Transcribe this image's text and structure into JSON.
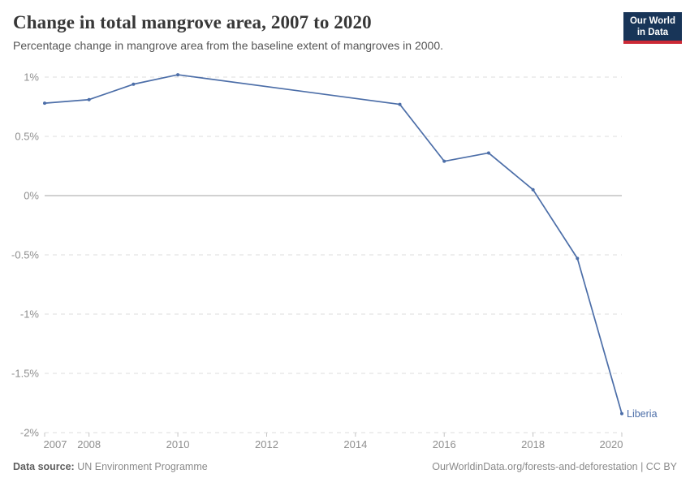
{
  "header": {
    "title": "Change in total mangrove area, 2007 to 2020",
    "subtitle": "Percentage change in mangrove area from the baseline extent of mangroves in 2000."
  },
  "logo": {
    "line1": "Our World",
    "line2": "in Data"
  },
  "chart_data": {
    "type": "line",
    "title": "Change in total mangrove area, 2007 to 2020",
    "xlabel": "",
    "ylabel": "",
    "xlim": [
      2007,
      2020
    ],
    "ylim": [
      -2,
      1
    ],
    "grid": "horizontal-dashed",
    "zero_line": true,
    "legend_position": "end-of-line-label",
    "series": [
      {
        "name": "Liberia",
        "x": [
          2007,
          2008,
          2009,
          2010,
          2015,
          2016,
          2017,
          2018,
          2019,
          2020
        ],
        "values": [
          0.78,
          0.81,
          0.94,
          1.02,
          0.77,
          0.29,
          0.36,
          0.05,
          -0.53,
          -1.84
        ]
      }
    ],
    "y_ticks": [
      {
        "value": 1,
        "label": "1%"
      },
      {
        "value": 0.5,
        "label": "0.5%"
      },
      {
        "value": 0,
        "label": "0%"
      },
      {
        "value": -0.5,
        "label": "-0.5%"
      },
      {
        "value": -1,
        "label": "-1%"
      },
      {
        "value": -1.5,
        "label": "-1.5%"
      },
      {
        "value": -2,
        "label": "-2%"
      }
    ],
    "x_ticks": [
      {
        "value": 2007,
        "label": "2007"
      },
      {
        "value": 2008,
        "label": "2008"
      },
      {
        "value": 2010,
        "label": "2010"
      },
      {
        "value": 2012,
        "label": "2012"
      },
      {
        "value": 2014,
        "label": "2014"
      },
      {
        "value": 2016,
        "label": "2016"
      },
      {
        "value": 2018,
        "label": "2018"
      },
      {
        "value": 2020,
        "label": "2020"
      }
    ]
  },
  "footer": {
    "source_label": "Data source:",
    "source_value": "UN Environment Programme",
    "link_text": "OurWorldinData.org/forests-and-deforestation | CC BY"
  },
  "colors": {
    "line": "#4c6ea8",
    "entity_label": "#4c6ea8",
    "grid": "#dddddd",
    "zero_line": "#a3a3a3",
    "tick_mark": "#c4c4c4",
    "axis_text": "#8f8f8f",
    "title_text": "#373737",
    "subtitle_text": "#555555",
    "footer_text": "#8a8a8a",
    "logo_bg": "#183558",
    "logo_bar": "#cc2936"
  }
}
